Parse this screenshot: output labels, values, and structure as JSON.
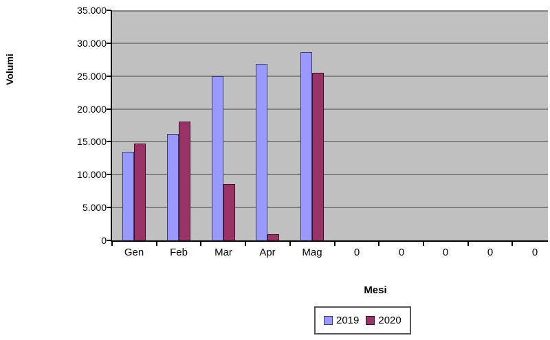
{
  "chart_data": {
    "type": "bar",
    "title": "",
    "xlabel": "Mesi",
    "ylabel": "Volumi",
    "categories": [
      "Gen",
      "Feb",
      "Mar",
      "Apr",
      "Mag",
      "0",
      "0",
      "0",
      "0",
      "0"
    ],
    "series": [
      {
        "name": "2019",
        "color": "#9999ff",
        "border_color": "#3b3b6e",
        "values": [
          13500,
          16200,
          25000,
          26900,
          28600,
          0,
          0,
          0,
          0,
          0
        ]
      },
      {
        "name": "2020",
        "color": "#993366",
        "border_color": "#33112b",
        "values": [
          14700,
          18100,
          8600,
          900,
          25500,
          0,
          0,
          0,
          0,
          0
        ]
      }
    ],
    "ylim": [
      0,
      35000
    ],
    "ytick_step": 5000,
    "ytick_labels": [
      "0",
      "5.000",
      "10.000",
      "15.000",
      "20.000",
      "25.000",
      "30.000",
      "35.000"
    ],
    "grid": true,
    "legend_position": "bottom-center",
    "colors": {
      "plot_background": "#c0c0c0",
      "gridline": "#808080",
      "axis": "#000000",
      "figure_background": "#ffffff",
      "text": "#000000"
    }
  }
}
